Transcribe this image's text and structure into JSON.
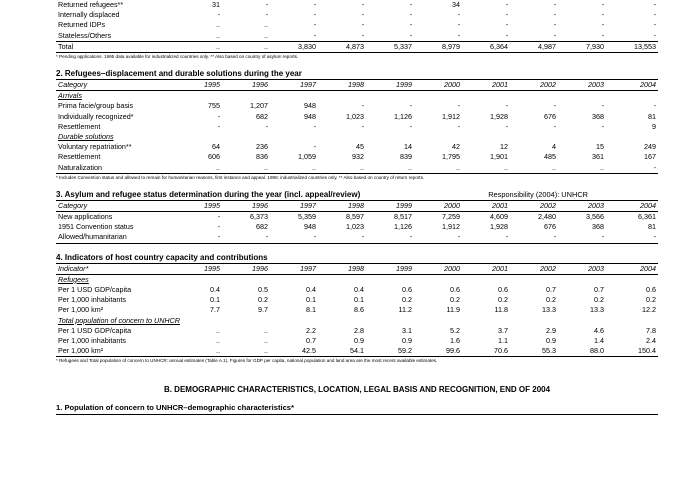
{
  "top_table": {
    "rows": [
      {
        "label": "Returned refugees**",
        "values": [
          "31",
          "-",
          "-",
          "-",
          "-",
          "34",
          "-",
          "-",
          "-",
          "-"
        ]
      },
      {
        "label": "Internally displaced",
        "values": [
          "-",
          "-",
          "-",
          "-",
          "-",
          "-",
          "-",
          "-",
          "-",
          "-"
        ]
      },
      {
        "label": "Returned IDPs",
        "values": [
          "..",
          "..",
          "-",
          "-",
          "-",
          "-",
          "-",
          "-",
          "-",
          "-"
        ]
      },
      {
        "label": "Stateless/Others",
        "values": [
          "..",
          "..",
          "-",
          "-",
          "-",
          "-",
          "-",
          "-",
          "-",
          "-"
        ]
      }
    ],
    "total": {
      "label": "Total",
      "values": [
        "..",
        "..",
        "3,830",
        "4,873",
        "5,337",
        "8,979",
        "6,364",
        "4,987",
        "7,930",
        "13,553"
      ]
    },
    "footnote": "* Pending applications. 1995 data available for industrialized countries only.  ** Also based on country of asylum reports."
  },
  "section2": {
    "title": "2. Refugees–displacement and durable solutions during the year",
    "header_label": "Category",
    "years": [
      "1995",
      "1996",
      "1997",
      "1998",
      "1999",
      "2000",
      "2001",
      "2002",
      "2003",
      "2004"
    ],
    "rows": [
      {
        "type": "sub",
        "label": "Arrivals"
      },
      {
        "label": "Prima facie/group basis",
        "values": [
          "755",
          "1,207",
          "948",
          "-",
          "-",
          "-",
          "-",
          "-",
          "-",
          "-"
        ]
      },
      {
        "label": "Individually recognized*",
        "values": [
          "-",
          "682",
          "948",
          "1,023",
          "1,126",
          "1,912",
          "1,928",
          "676",
          "368",
          "81"
        ]
      },
      {
        "label": "Resettlement",
        "values": [
          "-",
          "-",
          "-",
          "-",
          "-",
          "-",
          "-",
          "-",
          "-",
          "9"
        ]
      },
      {
        "type": "sub",
        "label": "Durable solutions"
      },
      {
        "label": "Voluntary repatriation**",
        "values": [
          "64",
          "236",
          "-",
          "45",
          "14",
          "42",
          "12",
          "4",
          "15",
          "249"
        ]
      },
      {
        "label": "Resettlement",
        "values": [
          "606",
          "836",
          "1,059",
          "932",
          "839",
          "1,795",
          "1,901",
          "485",
          "361",
          "167"
        ]
      },
      {
        "label": "Naturalization",
        "values": [
          "..",
          "..",
          "..",
          "..",
          "..",
          "..",
          "..",
          "..",
          "..",
          "-"
        ]
      }
    ],
    "footnote": "* Includes Convention status and allowed to remain for humanitarian reasons, first instance and appeal. 1995: industrialized countries only.  ** Also based on country of return reports."
  },
  "section3": {
    "title": "3. Asylum and refugee status determination during the year (incl. appeal/review)",
    "responsibility": "Responsibility (2004):   UNHCR",
    "header_label": "Category",
    "years": [
      "1995",
      "1996",
      "1997",
      "1998",
      "1999",
      "2000",
      "2001",
      "2002",
      "2003",
      "2004"
    ],
    "rows": [
      {
        "label": "New applications",
        "values": [
          "-",
          "6,373",
          "5,359",
          "8,597",
          "8,517",
          "7,259",
          "4,609",
          "2,480",
          "3,566",
          "6,361"
        ]
      },
      {
        "label": "1951 Convention status",
        "values": [
          "-",
          "682",
          "948",
          "1,023",
          "1,126",
          "1,912",
          "1,928",
          "676",
          "368",
          "81"
        ]
      },
      {
        "label": "Allowed/humanitarian",
        "values": [
          "-",
          "-",
          "-",
          "-",
          "-",
          "-",
          "-",
          "-",
          "-",
          "-"
        ]
      }
    ]
  },
  "section4": {
    "title": "4. Indicators of host country capacity and contributions",
    "header_label": "Indicator*",
    "years": [
      "1995",
      "1996",
      "1997",
      "1998",
      "1999",
      "2000",
      "2001",
      "2002",
      "2003",
      "2004"
    ],
    "rows": [
      {
        "type": "sub",
        "label": "Refugees"
      },
      {
        "label": "Per 1 USD GDP/capita",
        "values": [
          "0.4",
          "0.5",
          "0.4",
          "0.4",
          "0.6",
          "0.6",
          "0.6",
          "0.7",
          "0.7",
          "0.6"
        ]
      },
      {
        "label": "Per 1,000 inhabitants",
        "values": [
          "0.1",
          "0.2",
          "0.1",
          "0.1",
          "0.2",
          "0.2",
          "0.2",
          "0.2",
          "0.2",
          "0.2"
        ]
      },
      {
        "label": "Per 1,000 km²",
        "values": [
          "7.7",
          "9.7",
          "8.1",
          "8.6",
          "11.2",
          "11.9",
          "11.8",
          "13.3",
          "13.3",
          "12.2"
        ]
      },
      {
        "type": "sub",
        "label": "Total population of concern to UNHCR"
      },
      {
        "label": "Per 1 USD GDP/capita",
        "values": [
          "..",
          "..",
          "2.2",
          "2.8",
          "3.1",
          "5.2",
          "3.7",
          "2.9",
          "4.6",
          "7.8"
        ]
      },
      {
        "label": "Per 1,000 inhabitants",
        "values": [
          "..",
          "..",
          "0.7",
          "0.9",
          "0.9",
          "1.6",
          "1.1",
          "0.9",
          "1.4",
          "2.4"
        ]
      },
      {
        "label": "Per 1,000 km²",
        "values": [
          "..",
          "..",
          "42.5",
          "54.1",
          "59.2",
          "99.6",
          "70.6",
          "55.3",
          "88.0",
          "150.4"
        ]
      }
    ],
    "footnote": "* Refugees and Total population of concern to UNHCR: annual estimates (Table A.1). Figures for GDP per capita, national population and land area are the most recent available estimates."
  },
  "sectionB": {
    "title": "B. DEMOGRAPHIC CHARACTERISTICS, LOCATION, LEGAL BASIS AND RECOGNITION, END OF 2004",
    "sub1": "1. Population of concern to UNHCR–demographic characteristics*"
  }
}
